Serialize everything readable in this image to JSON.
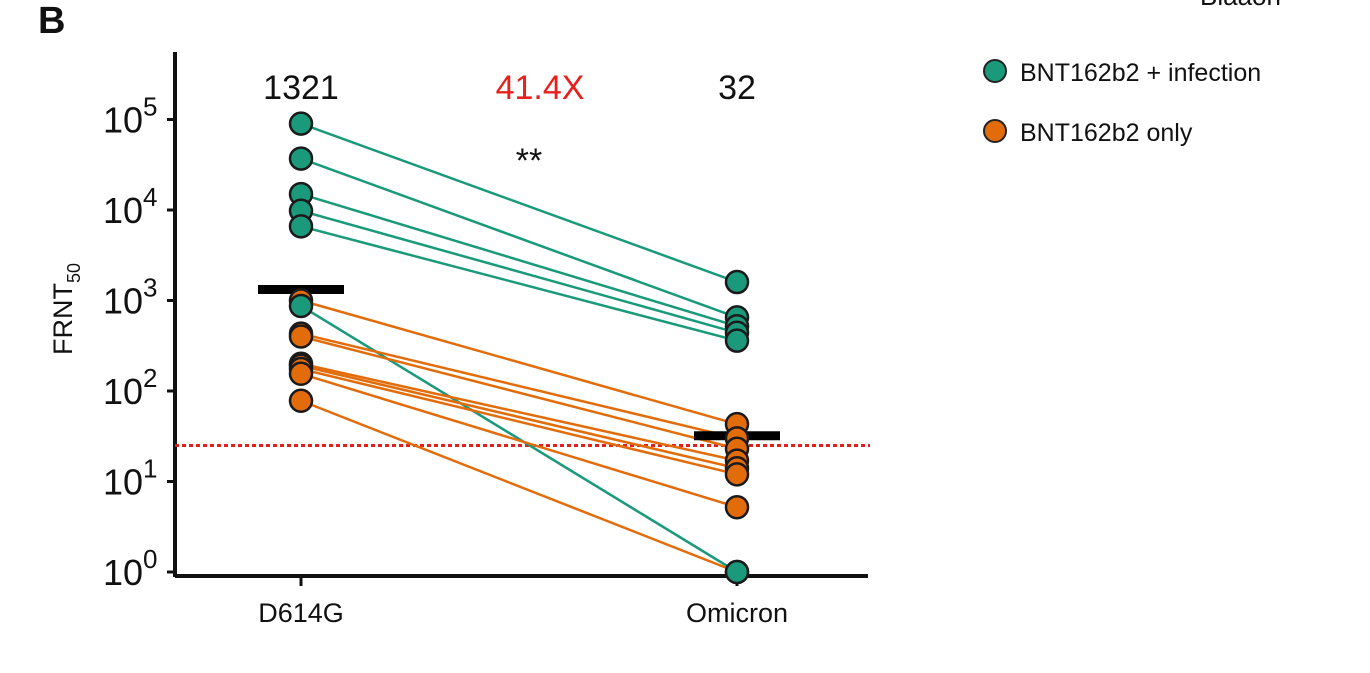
{
  "panel_label": "B",
  "corner_text": "Blaaon",
  "legend_items": [
    {
      "label": "BNT162b2 + infection",
      "color": "#1a9a7b"
    },
    {
      "label": "BNT162b2 only",
      "color": "#e36c0a"
    }
  ],
  "chart_data": {
    "type": "scatter",
    "title": "",
    "ylabel_main": "FRNT",
    "ylabel_sub": "50",
    "y_scale": "log",
    "ylim": [
      1,
      400000
    ],
    "y_ticks": [
      {
        "base": "10",
        "exp": "0",
        "value": 1
      },
      {
        "base": "10",
        "exp": "1",
        "value": 10
      },
      {
        "base": "10",
        "exp": "2",
        "value": 100
      },
      {
        "base": "10",
        "exp": "3",
        "value": 1000
      },
      {
        "base": "10",
        "exp": "4",
        "value": 10000
      },
      {
        "base": "10",
        "exp": "5",
        "value": 100000
      }
    ],
    "categories": [
      "D614G",
      "Omicron"
    ],
    "gmt_labels": [
      "1321",
      "32"
    ],
    "gmt_values": [
      1321,
      32
    ],
    "fold_change": "41.4X",
    "significance": "**",
    "limit_of_detection": 25,
    "series": [
      {
        "name": "BNT162b2 + infection",
        "color": "#1a9a7b",
        "pairs": [
          [
            90000,
            1600
          ],
          [
            37000,
            650
          ],
          [
            15000,
            520
          ],
          [
            9800,
            440
          ],
          [
            6600,
            360
          ],
          [
            870,
            1
          ]
        ]
      },
      {
        "name": "BNT162b2 only",
        "color": "#e36c0a",
        "pairs": [
          [
            1000,
            43
          ],
          [
            430,
            30
          ],
          [
            400,
            23
          ],
          [
            200,
            17
          ],
          [
            190,
            14
          ],
          [
            175,
            12
          ],
          [
            155,
            5.2
          ],
          [
            78,
            1
          ]
        ]
      }
    ]
  }
}
